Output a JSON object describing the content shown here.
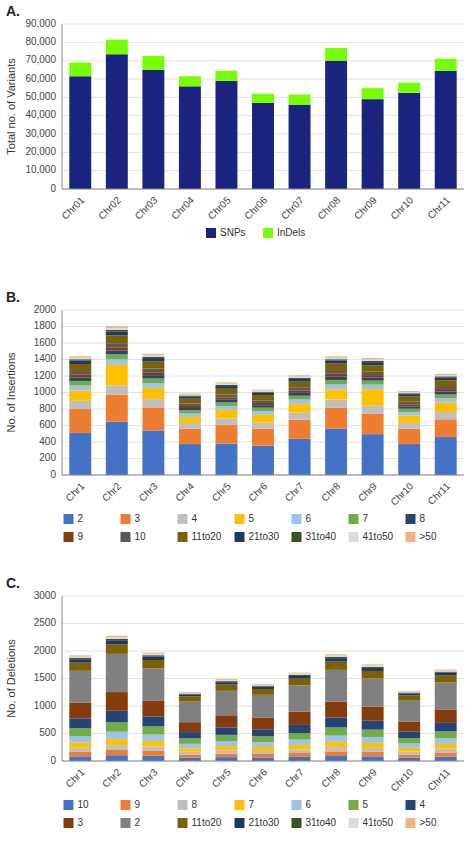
{
  "chart_data": [
    {
      "type": "bar",
      "stacked": true,
      "title": "A.",
      "ylabel": "Total no. of Variants",
      "categories": [
        "Chr01",
        "Chr02",
        "Chr03",
        "Chr04",
        "Chr05",
        "Chr06",
        "Chr07",
        "Chr08",
        "Chr09",
        "Chr10",
        "Chr11"
      ],
      "series": [
        {
          "name": "SNPs",
          "color": "#1a237e",
          "values": [
            61500,
            73500,
            65000,
            56000,
            59000,
            47000,
            46000,
            70000,
            49000,
            52500,
            64500
          ]
        },
        {
          "name": "InDels",
          "color": "#76ff03",
          "values": [
            7500,
            8000,
            7500,
            5500,
            5500,
            5000,
            5500,
            7000,
            6000,
            5500,
            6500
          ]
        }
      ],
      "ylim": [
        0,
        90000
      ],
      "yticks": [
        0,
        {
          "value": 10000,
          "label": "10,000"
        },
        {
          "value": 20000,
          "label": "20,000"
        },
        {
          "value": 30000,
          "label": "30,000"
        },
        {
          "value": 40000,
          "label": "40,000"
        },
        {
          "value": 50000,
          "label": "50,000"
        },
        {
          "value": 60000,
          "label": "60,000"
        },
        {
          "value": 70000,
          "label": "70,000"
        },
        {
          "value": 80000,
          "label": "80,000"
        },
        {
          "value": 90000,
          "label": "90,000"
        }
      ],
      "grid": true,
      "legend": "bottom"
    },
    {
      "type": "bar",
      "stacked": true,
      "title": "B.",
      "ylabel": "No. of Insertions",
      "categories": [
        "Chr1",
        "Chr2",
        "Chr3",
        "Chr4",
        "Chr5",
        "Chr6",
        "Chr7",
        "Chr8",
        "Chr9",
        "Chr10",
        "Chr11"
      ],
      "series": [
        {
          "name": "2",
          "color": "#4472c4",
          "values": [
            510,
            645,
            540,
            375,
            380,
            355,
            440,
            560,
            495,
            375,
            460
          ]
        },
        {
          "name": "3",
          "color": "#ed7d31",
          "values": [
            290,
            330,
            280,
            185,
            225,
            205,
            230,
            255,
            250,
            185,
            215
          ]
        },
        {
          "name": "4",
          "color": "#bfbfbf",
          "values": [
            100,
            110,
            100,
            70,
            80,
            75,
            85,
            100,
            95,
            72,
            88
          ]
        },
        {
          "name": "5",
          "color": "#ffc000",
          "values": [
            125,
            250,
            135,
            72,
            102,
            95,
            108,
            122,
            200,
            90,
            115
          ]
        },
        {
          "name": "6",
          "color": "#9dc3e6",
          "values": [
            60,
            68,
            60,
            42,
            50,
            46,
            52,
            60,
            56,
            42,
            52
          ]
        },
        {
          "name": "7",
          "color": "#70ad47",
          "values": [
            55,
            60,
            55,
            40,
            42,
            40,
            46,
            55,
            48,
            40,
            46
          ]
        },
        {
          "name": "8",
          "color": "#264478",
          "values": [
            40,
            45,
            40,
            28,
            33,
            30,
            35,
            40,
            36,
            28,
            35
          ]
        },
        {
          "name": "9",
          "color": "#843c0c",
          "values": [
            35,
            40,
            35,
            25,
            28,
            26,
            30,
            35,
            31,
            25,
            30
          ]
        },
        {
          "name": "10",
          "color": "#595959",
          "values": [
            45,
            50,
            45,
            30,
            37,
            33,
            38,
            45,
            41,
            32,
            38
          ]
        },
        {
          "name": "11to20",
          "color": "#7f6000",
          "values": [
            85,
            95,
            85,
            58,
            68,
            63,
            68,
            78,
            78,
            63,
            70
          ]
        },
        {
          "name": "21to30",
          "color": "#1f3864",
          "values": [
            42,
            48,
            42,
            28,
            33,
            30,
            33,
            38,
            38,
            28,
            34
          ]
        },
        {
          "name": "31to40",
          "color": "#375623",
          "values": [
            16,
            18,
            16,
            11,
            13,
            11,
            13,
            15,
            15,
            11,
            13
          ]
        },
        {
          "name": "41to50",
          "color": "#d6dce4",
          "values": [
            20,
            23,
            20,
            14,
            16,
            14,
            16,
            18,
            18,
            14,
            16
          ]
        },
        {
          "name": ">50",
          "color": "#f4b183",
          "values": [
            17,
            21,
            17,
            12,
            15,
            12,
            15,
            17,
            17,
            12,
            15
          ]
        }
      ],
      "ylim": [
        0,
        2000
      ],
      "yticks": [
        0,
        200,
        400,
        600,
        800,
        1000,
        1200,
        1400,
        1600,
        1800,
        2000
      ],
      "grid": true,
      "legend": "bottom"
    },
    {
      "type": "bar",
      "stacked": true,
      "title": "C.",
      "ylabel": "No. of Deletions",
      "categories": [
        "Chr1",
        "Chr2",
        "Chr3",
        "Chr4",
        "Chr5",
        "Chr6",
        "Chr7",
        "Chr8",
        "Chr9",
        "Chr10",
        "Chr11"
      ],
      "series": [
        {
          "name": "10",
          "color": "#4472c4",
          "values": [
            85,
            105,
            95,
            60,
            70,
            65,
            75,
            90,
            85,
            60,
            80
          ]
        },
        {
          "name": "9",
          "color": "#ed7d31",
          "values": [
            80,
            95,
            88,
            56,
            65,
            62,
            70,
            85,
            80,
            58,
            76
          ]
        },
        {
          "name": "8",
          "color": "#bfbfbf",
          "values": [
            75,
            88,
            82,
            52,
            60,
            57,
            65,
            78,
            74,
            54,
            70
          ]
        },
        {
          "name": "7",
          "color": "#ffc000",
          "values": [
            95,
            110,
            98,
            65,
            76,
            72,
            82,
            95,
            90,
            67,
            85
          ]
        },
        {
          "name": "6",
          "color": "#9dc3e6",
          "values": [
            115,
            135,
            118,
            80,
            92,
            88,
            98,
            116,
            108,
            80,
            102
          ]
        },
        {
          "name": "5",
          "color": "#70ad47",
          "values": [
            145,
            170,
            148,
            97,
            112,
            105,
            118,
            145,
            133,
            97,
            125
          ]
        },
        {
          "name": "4",
          "color": "#264478",
          "values": [
            180,
            210,
            182,
            116,
            136,
            128,
            148,
            180,
            162,
            116,
            155
          ]
        },
        {
          "name": "3",
          "color": "#843c0c",
          "values": [
            285,
            340,
            290,
            180,
            220,
            208,
            240,
            288,
            255,
            185,
            245
          ]
        },
        {
          "name": "2",
          "color": "#808080",
          "values": [
            580,
            695,
            585,
            375,
            445,
            418,
            478,
            580,
            516,
            380,
            490
          ]
        },
        {
          "name": "11to20",
          "color": "#7f6000",
          "values": [
            148,
            175,
            150,
            92,
            112,
            105,
            122,
            150,
            134,
            94,
            125
          ]
        },
        {
          "name": "21to30",
          "color": "#1f3864",
          "values": [
            62,
            73,
            63,
            38,
            46,
            44,
            50,
            63,
            56,
            39,
            52
          ]
        },
        {
          "name": "31to40",
          "color": "#375623",
          "values": [
            23,
            27,
            24,
            15,
            18,
            17,
            20,
            23,
            21,
            15,
            20
          ]
        },
        {
          "name": "41to50",
          "color": "#d6dce4",
          "values": [
            26,
            31,
            27,
            17,
            21,
            19,
            23,
            26,
            24,
            17,
            23
          ]
        },
        {
          "name": ">50",
          "color": "#f4b183",
          "values": [
            21,
            24,
            21,
            13,
            16,
            15,
            17,
            21,
            19,
            14,
            17
          ]
        }
      ],
      "ylim": [
        0,
        3000
      ],
      "yticks": [
        0,
        500,
        1000,
        1500,
        2000,
        2500,
        3000
      ],
      "grid": true,
      "legend": "bottom"
    }
  ]
}
